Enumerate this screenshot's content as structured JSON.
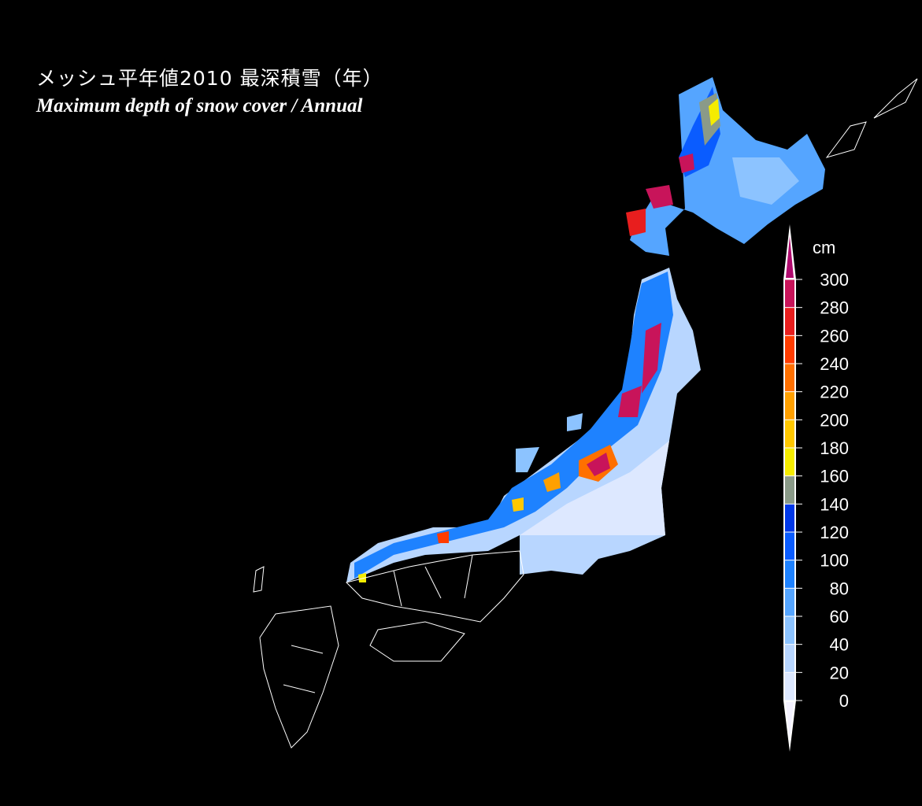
{
  "title_ja": "メッシュ平年値2010 最深積雪（年）",
  "title_en": "Maximum depth of snow cover /  Annual",
  "legend": {
    "unit": "cm",
    "ticks": [
      "0",
      "20",
      "40",
      "60",
      "80",
      "100",
      "120",
      "140",
      "160",
      "180",
      "200",
      "220",
      "240",
      "260",
      "280",
      "300"
    ],
    "colors": [
      "#dde8ff",
      "#b8d6ff",
      "#8cc3ff",
      "#55a5ff",
      "#1e82ff",
      "#0a5cff",
      "#0038e8",
      "#8a9a88",
      "#f5ec00",
      "#ffc800",
      "#ffa000",
      "#ff7000",
      "#ff3c00",
      "#e81e1e",
      "#c8145a"
    ],
    "over_color": "#b00a6e",
    "under_color": "#f4f2ff"
  },
  "map": {
    "region": "Japan",
    "background": "#000000",
    "boundary_color": "#ffffff"
  }
}
